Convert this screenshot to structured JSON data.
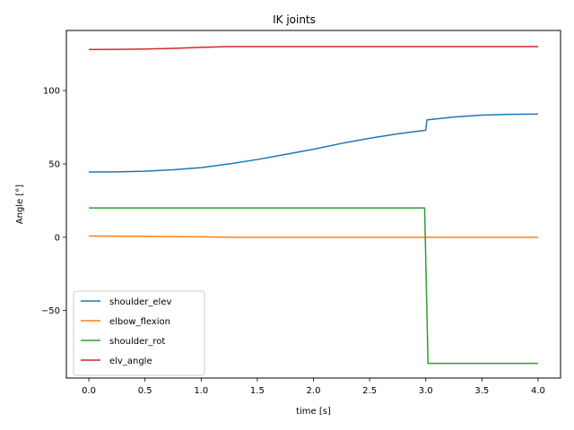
{
  "chart_data": {
    "type": "line",
    "title": "IK joints",
    "xlabel": "time [s]",
    "ylabel": "Angle [°]",
    "xlim": [
      -0.2,
      4.2
    ],
    "ylim": [
      -96,
      141
    ],
    "xticks": [
      0.0,
      0.5,
      1.0,
      1.5,
      2.0,
      2.5,
      3.0,
      3.5,
      4.0
    ],
    "xtick_labels": [
      "0.0",
      "0.5",
      "1.0",
      "1.5",
      "2.0",
      "2.5",
      "3.0",
      "3.5",
      "4.0"
    ],
    "yticks": [
      -50,
      0,
      50,
      100
    ],
    "ytick_labels": [
      "−50",
      "0",
      "50",
      "100"
    ],
    "grid": false,
    "legend_position": "lower-left",
    "series": [
      {
        "name": "shoulder_elev",
        "color": "#1f77b4",
        "x": [
          0.0,
          0.25,
          0.5,
          0.75,
          1.0,
          1.25,
          1.5,
          1.75,
          2.0,
          2.25,
          2.5,
          2.75,
          3.0,
          3.01,
          3.25,
          3.5,
          3.75,
          4.0
        ],
        "y": [
          44.5,
          44.6,
          45.0,
          46.0,
          47.5,
          50.0,
          53.0,
          56.5,
          60.0,
          64.0,
          67.5,
          70.5,
          73.0,
          80.0,
          82.0,
          83.3,
          83.8,
          84.0
        ]
      },
      {
        "name": "elbow_flexion",
        "color": "#ff7f0e",
        "x": [
          0.0,
          0.5,
          1.0,
          1.3,
          1.5,
          2.0,
          2.5,
          3.0,
          3.5,
          4.0
        ],
        "y": [
          0.8,
          0.6,
          0.3,
          0.0,
          0.0,
          0.0,
          0.0,
          0.0,
          0.0,
          0.0
        ]
      },
      {
        "name": "shoulder_rot",
        "color": "#2ca02c",
        "x": [
          0.0,
          0.5,
          1.0,
          1.5,
          2.0,
          2.5,
          2.99,
          3.02,
          3.5,
          4.0
        ],
        "y": [
          20.0,
          20.0,
          20.0,
          20.0,
          20.0,
          20.0,
          20.0,
          -86.0,
          -86.0,
          -86.0
        ]
      },
      {
        "name": "elv_angle",
        "color": "#d62728",
        "x": [
          0.0,
          0.25,
          0.5,
          0.75,
          1.0,
          1.25,
          1.5,
          2.0,
          2.5,
          3.0,
          3.5,
          4.0
        ],
        "y": [
          128.0,
          128.1,
          128.3,
          128.8,
          129.5,
          130.0,
          130.0,
          130.0,
          130.0,
          130.0,
          130.0,
          130.0
        ]
      }
    ]
  }
}
